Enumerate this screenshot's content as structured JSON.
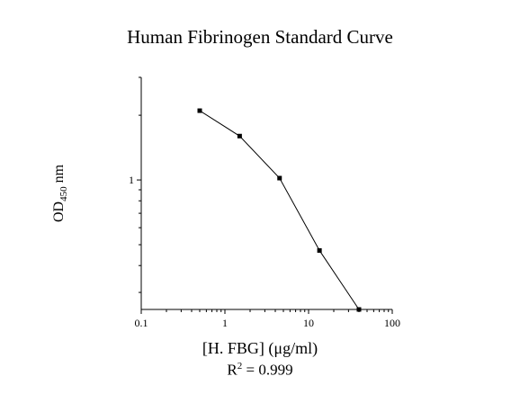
{
  "chart_data": {
    "type": "line",
    "title": "Human Fibrinogen Standard Curve",
    "xlabel": "[H. FBG] (μg/ml)",
    "ylabel": {
      "main": "OD",
      "sub": "450",
      "unit": " nm"
    },
    "annotation": {
      "prefix": "R",
      "sup": "2",
      "suffix": " = 0.999"
    },
    "x_scale": "log",
    "y_scale": "log",
    "xlim": [
      0.1,
      100
    ],
    "ylim": [
      0.25,
      3.0
    ],
    "x_ticks": [
      "0.1",
      "1",
      "10",
      "100"
    ],
    "y_ticks": [
      "1"
    ],
    "grid": false,
    "marker": "square",
    "line_color": "#000000",
    "series": [
      {
        "x": [
          0.5,
          1.5,
          4.5,
          13.5,
          40
        ],
        "y": [
          2.1,
          1.6,
          1.02,
          0.47,
          0.25
        ]
      }
    ]
  }
}
